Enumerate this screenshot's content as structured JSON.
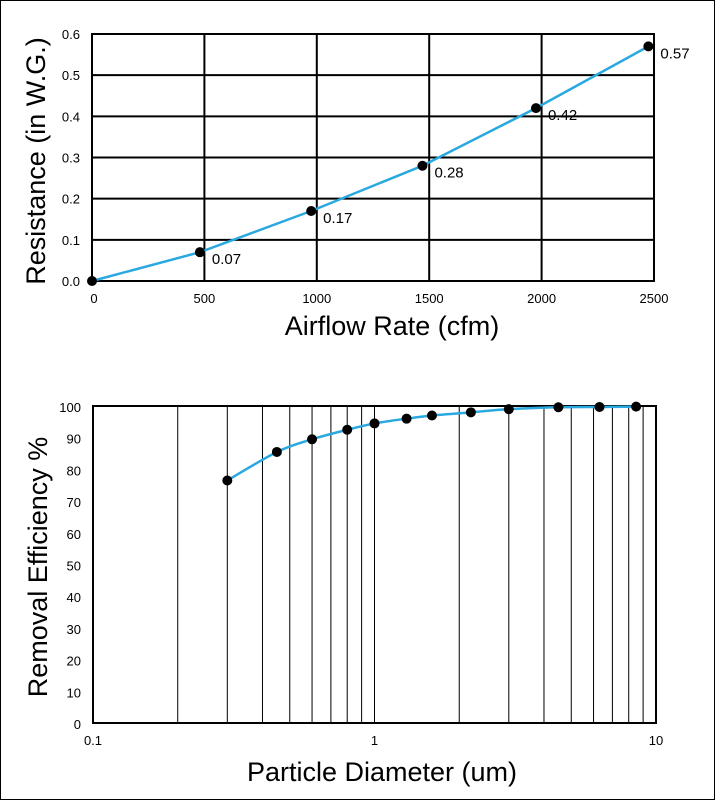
{
  "chart_data": [
    {
      "type": "line",
      "title": "",
      "xlabel": "Airflow Rate (cfm)",
      "ylabel": "Resistance (in W.G.)",
      "xlim": [
        0,
        2500
      ],
      "ylim": [
        0,
        0.6
      ],
      "x_ticks": [
        "0",
        "500",
        "1000",
        "1500",
        "2000",
        "2500"
      ],
      "y_ticks": [
        "0.0",
        "0.1",
        "0.2",
        "0.3",
        "0.4",
        "0.5",
        "0.6"
      ],
      "grid": true,
      "series": [
        {
          "x": [
            0,
            480,
            975,
            1470,
            1975,
            2475
          ],
          "y": [
            0.0,
            0.07,
            0.17,
            0.28,
            0.42,
            0.57
          ],
          "labels": [
            "",
            "0.07",
            "0.17",
            "0.28",
            "0.42",
            "0.57"
          ]
        }
      ],
      "line_color": "#2AA8E0",
      "marker_color": "#000000"
    },
    {
      "type": "scatter",
      "title": "",
      "xlabel": "Particle Diameter (um)",
      "ylabel": "Removal Efficiency %",
      "xscale": "log",
      "xlim": [
        0.1,
        10
      ],
      "ylim": [
        0,
        100
      ],
      "x_ticks": [
        "0.1",
        "1",
        "10"
      ],
      "y_ticks": [
        "0",
        "10",
        "20",
        "30",
        "40",
        "50",
        "60",
        "70",
        "80",
        "90",
        "100"
      ],
      "grid": "vertical-log",
      "series": [
        {
          "x": [
            0.3,
            0.45,
            0.6,
            0.8,
            1.0,
            1.3,
            1.6,
            2.2,
            3.0,
            4.5,
            6.3,
            8.5
          ],
          "y": [
            76.5,
            85.5,
            89.5,
            92.5,
            94.5,
            96,
            97,
            98,
            99,
            99.6,
            99.7,
            99.8
          ]
        }
      ],
      "line_color": "#2AA8E0",
      "marker_color": "#000000"
    }
  ]
}
